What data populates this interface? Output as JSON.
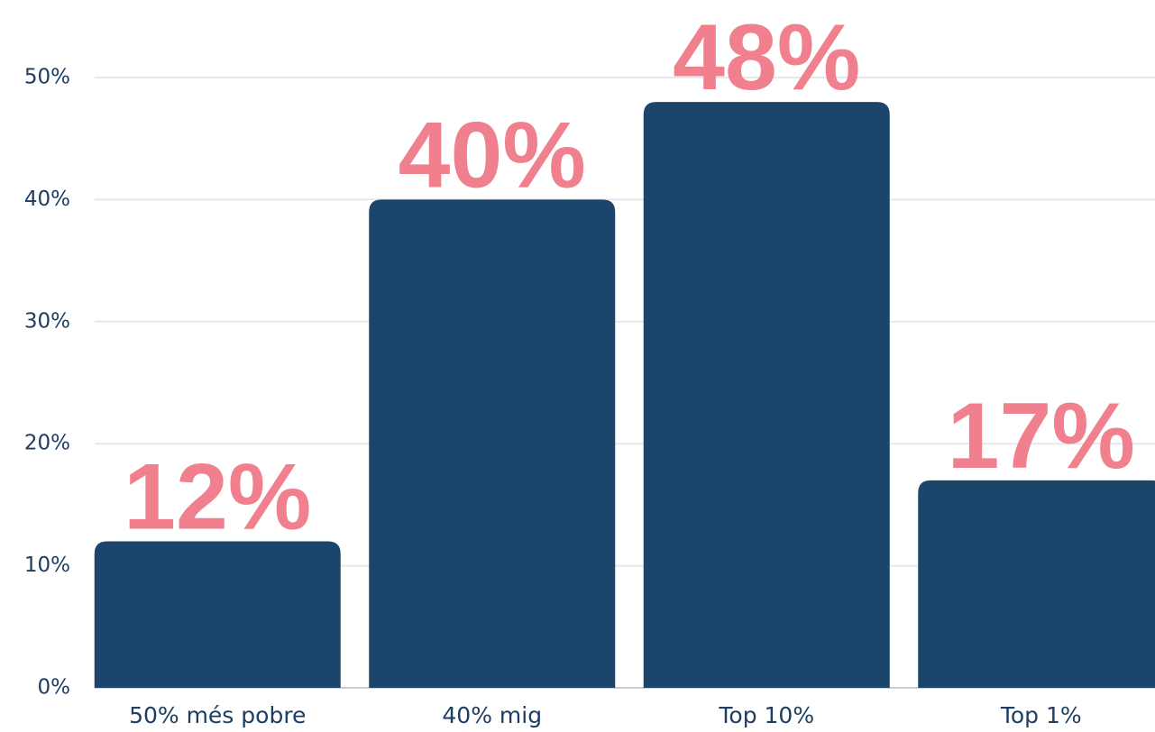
{
  "chart_data": {
    "type": "bar",
    "categories": [
      "50% més pobre",
      "40% mig",
      "Top 10%",
      "Top 1%"
    ],
    "values": [
      12,
      40,
      48,
      17
    ],
    "value_labels": [
      "12%",
      "40%",
      "48%",
      "17%"
    ],
    "color": "#1b456b",
    "label_color": "#f0808e",
    "ylim": [
      0,
      50
    ],
    "yticks": [
      {
        "value": 0,
        "label": "0%"
      },
      {
        "value": 10,
        "label": "10%"
      },
      {
        "value": 20,
        "label": "20%"
      },
      {
        "value": 30,
        "label": "30%"
      },
      {
        "value": 40,
        "label": "40%"
      },
      {
        "value": 50,
        "label": "50%"
      }
    ],
    "grid": true
  }
}
